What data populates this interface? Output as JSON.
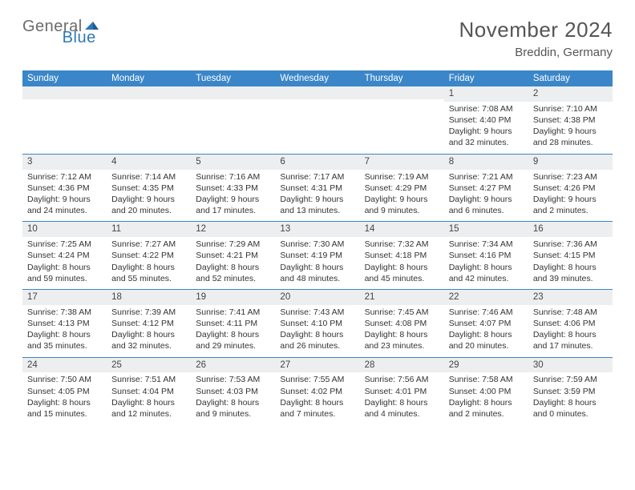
{
  "brand": {
    "part1": "General",
    "part2": "Blue"
  },
  "title": "November 2024",
  "location": "Breddin, Germany",
  "colors": {
    "header_bg": "#3a86c8",
    "header_text": "#ffffff",
    "row_divider": "#3a86c8",
    "daynum_bg": "#eceef0",
    "text": "#333333",
    "brand_gray": "#6b6b6b",
    "brand_blue": "#2f78b7"
  },
  "typography": {
    "title_fontsize": 26,
    "subtitle_fontsize": 15,
    "header_fontsize": 11.5,
    "daynum_fontsize": 11.5,
    "body_fontsize": 10.5
  },
  "weekdays": [
    "Sunday",
    "Monday",
    "Tuesday",
    "Wednesday",
    "Thursday",
    "Friday",
    "Saturday"
  ],
  "weeks": [
    [
      {
        "n": "",
        "sunrise": "",
        "sunset": "",
        "daylight": ""
      },
      {
        "n": "",
        "sunrise": "",
        "sunset": "",
        "daylight": ""
      },
      {
        "n": "",
        "sunrise": "",
        "sunset": "",
        "daylight": ""
      },
      {
        "n": "",
        "sunrise": "",
        "sunset": "",
        "daylight": ""
      },
      {
        "n": "",
        "sunrise": "",
        "sunset": "",
        "daylight": ""
      },
      {
        "n": "1",
        "sunrise": "Sunrise: 7:08 AM",
        "sunset": "Sunset: 4:40 PM",
        "daylight": "Daylight: 9 hours and 32 minutes."
      },
      {
        "n": "2",
        "sunrise": "Sunrise: 7:10 AM",
        "sunset": "Sunset: 4:38 PM",
        "daylight": "Daylight: 9 hours and 28 minutes."
      }
    ],
    [
      {
        "n": "3",
        "sunrise": "Sunrise: 7:12 AM",
        "sunset": "Sunset: 4:36 PM",
        "daylight": "Daylight: 9 hours and 24 minutes."
      },
      {
        "n": "4",
        "sunrise": "Sunrise: 7:14 AM",
        "sunset": "Sunset: 4:35 PM",
        "daylight": "Daylight: 9 hours and 20 minutes."
      },
      {
        "n": "5",
        "sunrise": "Sunrise: 7:16 AM",
        "sunset": "Sunset: 4:33 PM",
        "daylight": "Daylight: 9 hours and 17 minutes."
      },
      {
        "n": "6",
        "sunrise": "Sunrise: 7:17 AM",
        "sunset": "Sunset: 4:31 PM",
        "daylight": "Daylight: 9 hours and 13 minutes."
      },
      {
        "n": "7",
        "sunrise": "Sunrise: 7:19 AM",
        "sunset": "Sunset: 4:29 PM",
        "daylight": "Daylight: 9 hours and 9 minutes."
      },
      {
        "n": "8",
        "sunrise": "Sunrise: 7:21 AM",
        "sunset": "Sunset: 4:27 PM",
        "daylight": "Daylight: 9 hours and 6 minutes."
      },
      {
        "n": "9",
        "sunrise": "Sunrise: 7:23 AM",
        "sunset": "Sunset: 4:26 PM",
        "daylight": "Daylight: 9 hours and 2 minutes."
      }
    ],
    [
      {
        "n": "10",
        "sunrise": "Sunrise: 7:25 AM",
        "sunset": "Sunset: 4:24 PM",
        "daylight": "Daylight: 8 hours and 59 minutes."
      },
      {
        "n": "11",
        "sunrise": "Sunrise: 7:27 AM",
        "sunset": "Sunset: 4:22 PM",
        "daylight": "Daylight: 8 hours and 55 minutes."
      },
      {
        "n": "12",
        "sunrise": "Sunrise: 7:29 AM",
        "sunset": "Sunset: 4:21 PM",
        "daylight": "Daylight: 8 hours and 52 minutes."
      },
      {
        "n": "13",
        "sunrise": "Sunrise: 7:30 AM",
        "sunset": "Sunset: 4:19 PM",
        "daylight": "Daylight: 8 hours and 48 minutes."
      },
      {
        "n": "14",
        "sunrise": "Sunrise: 7:32 AM",
        "sunset": "Sunset: 4:18 PM",
        "daylight": "Daylight: 8 hours and 45 minutes."
      },
      {
        "n": "15",
        "sunrise": "Sunrise: 7:34 AM",
        "sunset": "Sunset: 4:16 PM",
        "daylight": "Daylight: 8 hours and 42 minutes."
      },
      {
        "n": "16",
        "sunrise": "Sunrise: 7:36 AM",
        "sunset": "Sunset: 4:15 PM",
        "daylight": "Daylight: 8 hours and 39 minutes."
      }
    ],
    [
      {
        "n": "17",
        "sunrise": "Sunrise: 7:38 AM",
        "sunset": "Sunset: 4:13 PM",
        "daylight": "Daylight: 8 hours and 35 minutes."
      },
      {
        "n": "18",
        "sunrise": "Sunrise: 7:39 AM",
        "sunset": "Sunset: 4:12 PM",
        "daylight": "Daylight: 8 hours and 32 minutes."
      },
      {
        "n": "19",
        "sunrise": "Sunrise: 7:41 AM",
        "sunset": "Sunset: 4:11 PM",
        "daylight": "Daylight: 8 hours and 29 minutes."
      },
      {
        "n": "20",
        "sunrise": "Sunrise: 7:43 AM",
        "sunset": "Sunset: 4:10 PM",
        "daylight": "Daylight: 8 hours and 26 minutes."
      },
      {
        "n": "21",
        "sunrise": "Sunrise: 7:45 AM",
        "sunset": "Sunset: 4:08 PM",
        "daylight": "Daylight: 8 hours and 23 minutes."
      },
      {
        "n": "22",
        "sunrise": "Sunrise: 7:46 AM",
        "sunset": "Sunset: 4:07 PM",
        "daylight": "Daylight: 8 hours and 20 minutes."
      },
      {
        "n": "23",
        "sunrise": "Sunrise: 7:48 AM",
        "sunset": "Sunset: 4:06 PM",
        "daylight": "Daylight: 8 hours and 17 minutes."
      }
    ],
    [
      {
        "n": "24",
        "sunrise": "Sunrise: 7:50 AM",
        "sunset": "Sunset: 4:05 PM",
        "daylight": "Daylight: 8 hours and 15 minutes."
      },
      {
        "n": "25",
        "sunrise": "Sunrise: 7:51 AM",
        "sunset": "Sunset: 4:04 PM",
        "daylight": "Daylight: 8 hours and 12 minutes."
      },
      {
        "n": "26",
        "sunrise": "Sunrise: 7:53 AM",
        "sunset": "Sunset: 4:03 PM",
        "daylight": "Daylight: 8 hours and 9 minutes."
      },
      {
        "n": "27",
        "sunrise": "Sunrise: 7:55 AM",
        "sunset": "Sunset: 4:02 PM",
        "daylight": "Daylight: 8 hours and 7 minutes."
      },
      {
        "n": "28",
        "sunrise": "Sunrise: 7:56 AM",
        "sunset": "Sunset: 4:01 PM",
        "daylight": "Daylight: 8 hours and 4 minutes."
      },
      {
        "n": "29",
        "sunrise": "Sunrise: 7:58 AM",
        "sunset": "Sunset: 4:00 PM",
        "daylight": "Daylight: 8 hours and 2 minutes."
      },
      {
        "n": "30",
        "sunrise": "Sunrise: 7:59 AM",
        "sunset": "Sunset: 3:59 PM",
        "daylight": "Daylight: 8 hours and 0 minutes."
      }
    ]
  ]
}
